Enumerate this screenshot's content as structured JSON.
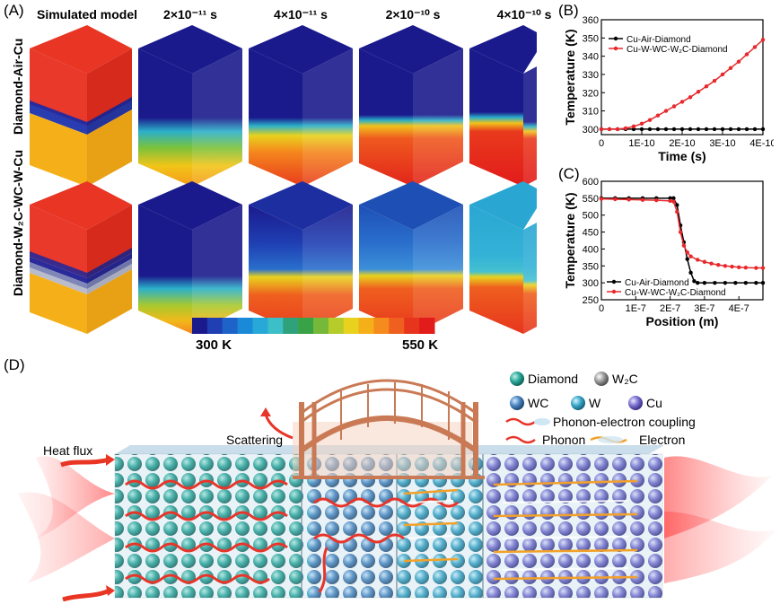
{
  "panel_a": {
    "label": "(A)",
    "columns": [
      "Simulated model",
      "2×10⁻¹¹ s",
      "4×10⁻¹¹ s",
      "2×10⁻¹⁰ s",
      "4×10⁻¹⁰ s"
    ],
    "rows": [
      "Diamond-Air-Cu",
      "Diamond-W₂C-WC-W-Cu"
    ],
    "colorbar_min": "300 K",
    "colorbar_max": "550 K",
    "colorbar_colors": [
      "#1a1a8c",
      "#1f3fb3",
      "#1d63c8",
      "#1a8ad8",
      "#27a8d8",
      "#3cbfc7",
      "#2fa27b",
      "#3aa246",
      "#76b83a",
      "#b5cc2b",
      "#e8d21e",
      "#f5b019",
      "#f58a1d",
      "#ef5f1f",
      "#e7351d",
      "#e21b1b"
    ]
  },
  "panel_b": {
    "label": "(B)",
    "chart_data": {
      "type": "line",
      "xlabel": "Time (s)",
      "ylabel": "Temperature (K)",
      "xlim": [
        0,
        4e-10
      ],
      "ylim": [
        297,
        360
      ],
      "xticks": [
        "0",
        "1E-10",
        "2E-10",
        "3E-10",
        "4E-10"
      ],
      "yticks": [
        "300",
        "310",
        "320",
        "330",
        "340",
        "350",
        "360"
      ],
      "series": [
        {
          "name": "Cu-Air-Diamond",
          "color": "#000000",
          "x": [
            0,
            2e-11,
            4e-11,
            6e-11,
            8e-11,
            1e-10,
            1.2e-10,
            1.4e-10,
            1.6e-10,
            1.8e-10,
            2e-10,
            2.2e-10,
            2.4e-10,
            2.6e-10,
            2.8e-10,
            3e-10,
            3.2e-10,
            3.4e-10,
            3.6e-10,
            3.8e-10,
            4e-10
          ],
          "y": [
            300,
            300,
            300,
            300,
            300,
            300,
            300,
            300,
            300,
            300,
            300,
            300,
            300,
            300,
            300,
            300,
            300,
            300,
            300,
            300,
            300
          ]
        },
        {
          "name": "Cu-W-WC-W₂C-Diamond",
          "color": "#e8282b",
          "x": [
            0,
            2e-11,
            4e-11,
            6e-11,
            8e-11,
            1e-10,
            1.2e-10,
            1.4e-10,
            1.6e-10,
            1.8e-10,
            2e-10,
            2.2e-10,
            2.4e-10,
            2.6e-10,
            2.8e-10,
            3e-10,
            3.2e-10,
            3.4e-10,
            3.6e-10,
            3.8e-10,
            4e-10
          ],
          "y": [
            300,
            300,
            300,
            300.5,
            301.5,
            303,
            305,
            307.5,
            310,
            312.5,
            315,
            317.5,
            320.5,
            323.5,
            326.5,
            330,
            333.5,
            337,
            341,
            345,
            349
          ]
        }
      ]
    }
  },
  "panel_c": {
    "label": "(C)",
    "chart_data": {
      "type": "line",
      "xlabel": "Position (m)",
      "ylabel": "Temperature (K)",
      "xlim": [
        0,
        4.7e-07
      ],
      "ylim": [
        250,
        600
      ],
      "xticks": [
        "0",
        "1E-7",
        "2E-7",
        "3E-7",
        "4E-7"
      ],
      "yticks": [
        "250",
        "300",
        "350",
        "400",
        "450",
        "500",
        "550",
        "600"
      ],
      "series": [
        {
          "name": "Cu-Air-Diamond",
          "color": "#000000",
          "x": [
            0,
            4e-08,
            8e-08,
            1.2e-07,
            1.6e-07,
            2e-07,
            2.1e-07,
            2.2e-07,
            2.3e-07,
            2.4e-07,
            2.5e-07,
            2.6e-07,
            2.7e-07,
            2.8e-07,
            3e-07,
            3.3e-07,
            3.6e-07,
            3.9e-07,
            4.2e-07,
            4.5e-07,
            4.7e-07
          ],
          "y": [
            550,
            550,
            550,
            550,
            550,
            550,
            550,
            530,
            470,
            420,
            370,
            330,
            305,
            300,
            300,
            300,
            300,
            300,
            300,
            300,
            300
          ]
        },
        {
          "name": "Cu-W-WC-W₂C-Diamond",
          "color": "#e8282b",
          "x": [
            0,
            4e-08,
            8e-08,
            1.2e-07,
            1.6e-07,
            2e-07,
            2.1e-07,
            2.2e-07,
            2.3e-07,
            2.4e-07,
            2.5e-07,
            2.6e-07,
            2.8e-07,
            3e-07,
            3.2e-07,
            3.4e-07,
            3.6e-07,
            3.8e-07,
            4e-07,
            4.2e-07,
            4.5e-07,
            4.7e-07
          ],
          "y": [
            548,
            547,
            546,
            545,
            544,
            542,
            540,
            510,
            450,
            410,
            390,
            378,
            368,
            362,
            357,
            353,
            350,
            348,
            346,
            345,
            344,
            344
          ]
        }
      ]
    }
  },
  "panel_d": {
    "label": "(D)",
    "heat_flux": "Heat flux",
    "scattering": "Scattering",
    "legend": {
      "diamond": "Diamond",
      "w2c": "W₂C",
      "wc": "WC",
      "w": "W",
      "cu": "Cu",
      "phonon_electron": "Phonon-electron coupling",
      "phonon": "Phonon",
      "electron": "Electron"
    },
    "colors": {
      "diamond": "#2aa89a",
      "w2c": "#9a9a9a",
      "wc": "#4a86c0",
      "w": "#3aa6c8",
      "cu": "#7a6fd0"
    }
  }
}
